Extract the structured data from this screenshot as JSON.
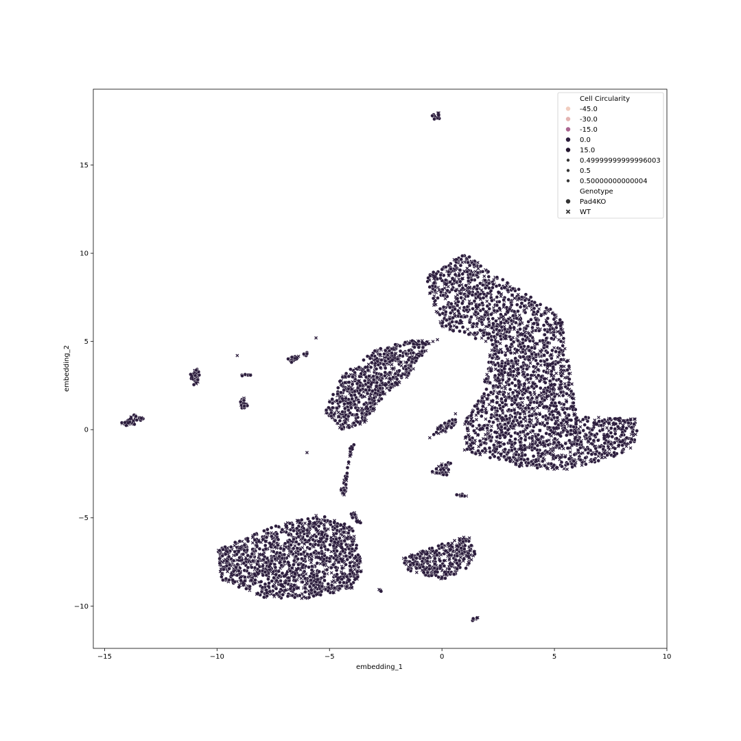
{
  "chart_data": {
    "type": "scatter",
    "title": "",
    "xlabel": "embedding_1",
    "ylabel": "embedding_2",
    "xlim": [
      -15.5,
      10.0
    ],
    "ylim": [
      -12.4,
      19.3
    ],
    "xticks": [
      -15,
      -10,
      -5,
      0,
      5,
      10
    ],
    "xtick_labels": [
      "−15",
      "−10",
      "−5",
      "0",
      "5",
      "10"
    ],
    "yticks": [
      -10,
      -5,
      0,
      5,
      10,
      15
    ],
    "ytick_labels": [
      "−10",
      "−5",
      "0",
      "5",
      "10",
      "15"
    ],
    "grid": false,
    "legend_position": "top-right",
    "point_fill": "#2d1e3e",
    "point_edge": "#ffffff",
    "legend": {
      "hue_title": "Cell Circularity",
      "hue_entries": [
        {
          "label": "-45.0",
          "color": "#f1cdbf"
        },
        {
          "label": "-30.0",
          "color": "#e3b3b1"
        },
        {
          "label": "-15.0",
          "color": "#a9648f"
        },
        {
          "label": "0.0",
          "color": "#2c1e3d"
        },
        {
          "label": "15.0",
          "color": "#24172f"
        }
      ],
      "size_entries": [
        {
          "label": "0.49999999999996003",
          "color": "#333333"
        },
        {
          "label": "0.5",
          "color": "#333333"
        },
        {
          "label": "0.50000000000004",
          "color": "#333333"
        }
      ],
      "style_title": "Genotype",
      "style_entries": [
        {
          "label": "Pad4KO",
          "marker": "circle"
        },
        {
          "label": "WT",
          "marker": "x"
        }
      ]
    },
    "clusters": [
      {
        "points": [
          [
            8.8,
            0.6
          ],
          [
            6.0,
            0.8
          ],
          [
            5.3,
            6.5
          ],
          [
            3.0,
            8.3
          ],
          [
            1.0,
            10.0
          ],
          [
            -0.8,
            8.6
          ],
          [
            0.0,
            5.8
          ],
          [
            2.2,
            4.8
          ],
          [
            1.8,
            2.0
          ],
          [
            1.0,
            0.5
          ],
          [
            1.0,
            -1.2
          ],
          [
            3.5,
            -2.1
          ],
          [
            5.5,
            -2.3
          ],
          [
            7.5,
            -1.6
          ],
          [
            8.5,
            -1.0
          ]
        ],
        "count": 2600
      },
      {
        "points": [
          [
            -0.4,
            5.0
          ],
          [
            -1.0,
            5.2
          ],
          [
            -3.0,
            4.5
          ],
          [
            -4.5,
            3.0
          ],
          [
            -5.2,
            1.0
          ],
          [
            -4.5,
            0.0
          ],
          [
            -3.5,
            0.3
          ],
          [
            -2.5,
            2.0
          ],
          [
            -1.5,
            3.0
          ]
        ],
        "count": 700
      },
      {
        "points": [
          [
            -3.5,
            -8.0
          ],
          [
            -4.0,
            -5.5
          ],
          [
            -5.5,
            -4.8
          ],
          [
            -7.5,
            -5.5
          ],
          [
            -10.0,
            -6.8
          ],
          [
            -9.8,
            -8.5
          ],
          [
            -8.0,
            -9.5
          ],
          [
            -6.0,
            -9.6
          ],
          [
            -4.0,
            -9.0
          ]
        ],
        "count": 1300
      },
      {
        "points": [
          [
            -1.8,
            -7.3
          ],
          [
            -0.5,
            -6.7
          ],
          [
            1.2,
            -6.0
          ],
          [
            1.5,
            -7.0
          ],
          [
            1.0,
            -8.0
          ],
          [
            0.0,
            -8.5
          ],
          [
            -1.5,
            -8.0
          ]
        ],
        "count": 350
      },
      {
        "points": [
          [
            -14.4,
            0.3
          ],
          [
            -13.6,
            0.9
          ],
          [
            -13.2,
            0.6
          ],
          [
            -13.8,
            0.2
          ]
        ],
        "count": 40
      },
      {
        "points": [
          [
            -11.2,
            3.1
          ],
          [
            -10.9,
            3.6
          ],
          [
            -10.7,
            3.0
          ],
          [
            -11.0,
            2.4
          ]
        ],
        "count": 35
      },
      {
        "points": [
          [
            -9.0,
            1.6
          ],
          [
            -8.8,
            1.8
          ],
          [
            -8.6,
            1.2
          ],
          [
            -8.9,
            1.2
          ]
        ],
        "count": 20
      },
      {
        "points": [
          [
            -6.9,
            4.1
          ],
          [
            -6.0,
            4.2
          ],
          [
            -5.9,
            4.5
          ],
          [
            -6.7,
            3.8
          ]
        ],
        "count": 25
      },
      {
        "points": [
          [
            -9.0,
            3.1
          ],
          [
            -8.4,
            3.2
          ],
          [
            -8.4,
            3.1
          ],
          [
            -9.0,
            3.0
          ]
        ],
        "count": 8
      },
      {
        "points": [
          [
            -0.6,
            -0.5
          ],
          [
            -0.2,
            0.2
          ],
          [
            0.8,
            0.8
          ],
          [
            0.4,
            0.0
          ]
        ],
        "count": 45
      },
      {
        "points": [
          [
            -0.7,
            -2.4
          ],
          [
            -0.2,
            -2.0
          ],
          [
            0.5,
            -1.8
          ],
          [
            0.2,
            -2.6
          ]
        ],
        "count": 35
      },
      {
        "points": [
          [
            -4.1,
            -1.0
          ],
          [
            -3.9,
            -0.8
          ],
          [
            -4.5,
            -3.5
          ],
          [
            -4.3,
            -3.8
          ]
        ],
        "count": 40
      },
      {
        "points": [
          [
            -4.1,
            -4.8
          ],
          [
            -3.9,
            -4.7
          ],
          [
            -3.6,
            -5.3
          ],
          [
            -3.8,
            -5.5
          ]
        ],
        "count": 18
      },
      {
        "points": [
          [
            -0.5,
            17.8
          ],
          [
            -0.1,
            18.0
          ],
          [
            -0.1,
            17.6
          ],
          [
            -0.5,
            17.6
          ]
        ],
        "count": 14
      },
      {
        "points": [
          [
            0.6,
            -3.6
          ],
          [
            1.1,
            -3.7
          ],
          [
            1.1,
            -3.9
          ],
          [
            0.7,
            -3.8
          ]
        ],
        "count": 8
      },
      {
        "points": [
          [
            1.2,
            -10.9
          ],
          [
            1.6,
            -10.5
          ],
          [
            1.6,
            -10.7
          ],
          [
            1.3,
            -10.9
          ]
        ],
        "count": 6
      },
      {
        "points": [
          [
            -2.8,
            -9.0
          ],
          [
            -2.7,
            -9.0
          ],
          [
            -2.7,
            -9.2
          ],
          [
            -2.8,
            -9.2
          ]
        ],
        "count": 3
      }
    ],
    "outliers": [
      [
        -5.6,
        5.2
      ],
      [
        -9.1,
        4.2
      ],
      [
        -6.0,
        -1.3
      ],
      [
        -0.4,
        5.0
      ],
      [
        -0.2,
        5.1
      ],
      [
        0.6,
        0.9
      ],
      [
        1.9,
        2.8
      ]
    ]
  }
}
